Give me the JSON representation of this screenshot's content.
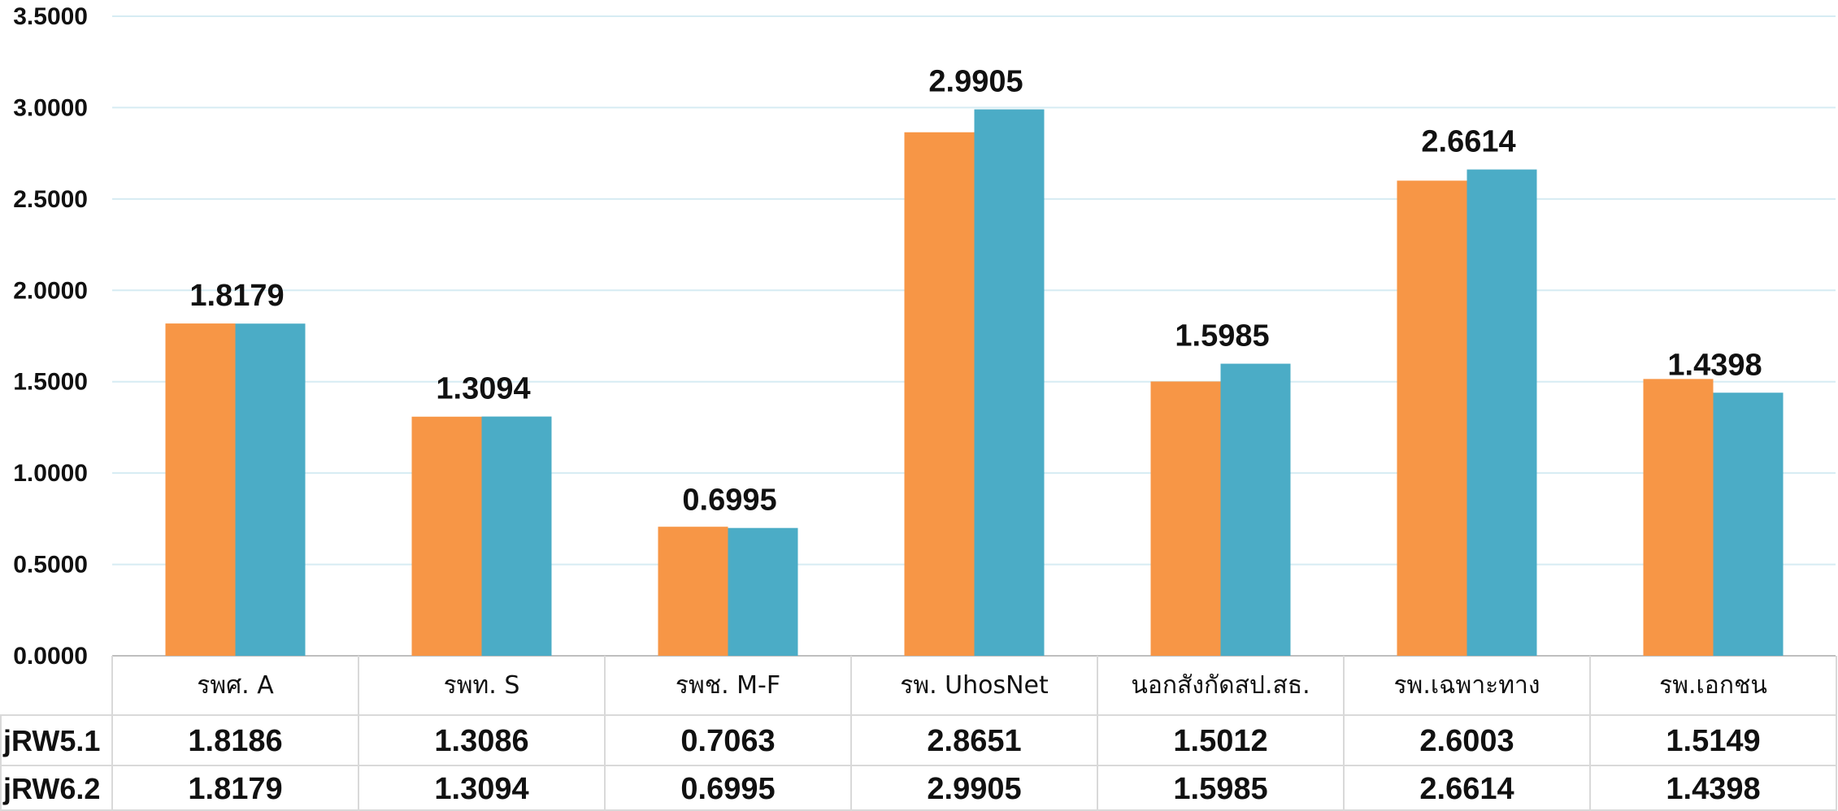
{
  "chart_data": {
    "type": "bar",
    "categories": [
      "รพศ. A",
      "รพท. S",
      "รพช. M-F",
      "รพ. UhosNet",
      "นอกสังกัดสป.สธ.",
      "รพ.เฉพาะทาง",
      "รพ.เอกชน"
    ],
    "series": [
      {
        "name": "jRW5.1",
        "color": "#F79646",
        "values": [
          1.8186,
          1.3086,
          0.7063,
          2.8651,
          1.5012,
          2.6003,
          1.5149
        ]
      },
      {
        "name": "jRW6.2",
        "color": "#4BACC6",
        "values": [
          1.8179,
          1.3094,
          0.6995,
          2.9905,
          1.5985,
          2.6614,
          1.4398
        ]
      }
    ],
    "data_labels_series": "jRW6.2",
    "ylim": [
      0,
      3.5
    ],
    "yticks": [
      "0.0000",
      "0.5000",
      "1.0000",
      "1.5000",
      "2.0000",
      "2.5000",
      "3.0000",
      "3.5000"
    ],
    "grid": true,
    "data_table": true,
    "gridline_color": "#d6ecf3",
    "table_border_color": "#d9d9d9"
  }
}
